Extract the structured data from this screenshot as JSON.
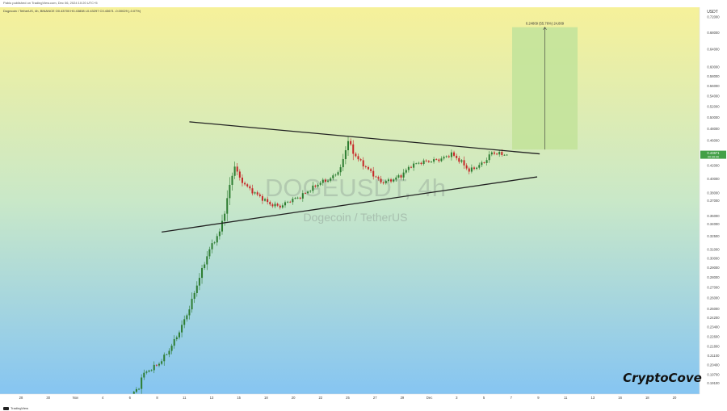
{
  "header": {
    "publisher": "Pablo published on TradingView.com, Dec 06, 2024 10:20 UTC+5",
    "symbol_line": "Dogecoin / TetherUS, 4h, BINANCE  O0.43700  H0.43808  L0.43297  C0.43671  -0.00029 (-0.07%)"
  },
  "currency": "USDT",
  "watermark": {
    "ticker": "DOGEUSDT, 4h",
    "name": "Dogecoin / TetherUS"
  },
  "brand": "CryptoCove",
  "footer": {
    "tradingview": "TradingView"
  },
  "colors": {
    "bg_top": "#f6f19a",
    "bg_mid": "#c9e8c8",
    "bg_bottom": "#86c5f2",
    "up": "#2e7d32",
    "down": "#c62828",
    "target_box": "#c3e39b",
    "trendline": "#222222"
  },
  "chart_data": {
    "type": "candlestick",
    "symbol": "DOGEUSDT",
    "timeframe": "4h",
    "price_scale": "log",
    "ylim": [
      0.1835,
      0.745
    ],
    "y_ticks": [
      "0.72000",
      "0.68000",
      "0.64000",
      "0.60000",
      "0.58000",
      "0.56000",
      "0.54000",
      "0.52000",
      "0.50000",
      "0.48000",
      "0.46000",
      "0.42000",
      "0.40000",
      "0.38000",
      "0.37000",
      "0.35000",
      "0.34000",
      "0.32500",
      "0.31000",
      "0.30000",
      "0.29000",
      "0.28000",
      "0.27000",
      "0.26000",
      "0.25000",
      "0.24200",
      "0.23400",
      "0.22600",
      "0.21800",
      "0.21100",
      "0.20400",
      "0.19700",
      "0.19100",
      "0.18450"
    ],
    "current_price": "0.43671",
    "current_price_sub": "00:39:40",
    "x_ticks": [
      "28",
      "30",
      "Nov",
      "4",
      "6",
      "8",
      "11",
      "13",
      "15",
      "18",
      "20",
      "22",
      "25",
      "27",
      "29",
      "Dec",
      "3",
      "5",
      "7",
      "9",
      "11",
      "13",
      "16",
      "18",
      "20"
    ],
    "price_path": [
      [
        0,
        0.185
      ],
      [
        2,
        0.187
      ],
      [
        3,
        0.196
      ],
      [
        6,
        0.2
      ],
      [
        10,
        0.205
      ],
      [
        14,
        0.215
      ],
      [
        18,
        0.23
      ],
      [
        22,
        0.25
      ],
      [
        26,
        0.28
      ],
      [
        30,
        0.31
      ],
      [
        34,
        0.33
      ],
      [
        36,
        0.355
      ],
      [
        38,
        0.39
      ],
      [
        40,
        0.42
      ],
      [
        42,
        0.4
      ],
      [
        46,
        0.385
      ],
      [
        50,
        0.375
      ],
      [
        54,
        0.365
      ],
      [
        58,
        0.362
      ],
      [
        62,
        0.37
      ],
      [
        66,
        0.375
      ],
      [
        70,
        0.385
      ],
      [
        74,
        0.395
      ],
      [
        78,
        0.4
      ],
      [
        82,
        0.415
      ],
      [
        85,
        0.46
      ],
      [
        87,
        0.44
      ],
      [
        90,
        0.425
      ],
      [
        94,
        0.41
      ],
      [
        98,
        0.395
      ],
      [
        102,
        0.398
      ],
      [
        106,
        0.405
      ],
      [
        110,
        0.42
      ],
      [
        114,
        0.425
      ],
      [
        118,
        0.427
      ],
      [
        122,
        0.43
      ],
      [
        126,
        0.438
      ],
      [
        130,
        0.425
      ],
      [
        133,
        0.412
      ],
      [
        136,
        0.418
      ],
      [
        139,
        0.425
      ],
      [
        142,
        0.44
      ],
      [
        145,
        0.438
      ],
      [
        148,
        0.4367
      ]
    ],
    "trendlines": [
      {
        "name": "upper",
        "from": [
          22,
          0.492
        ],
        "to": [
          161,
          0.438
        ]
      },
      {
        "name": "lower",
        "from": [
          11,
          0.33
        ],
        "to": [
          160,
          0.403
        ]
      }
    ],
    "projection": {
      "label": "0.24809 (55.76%) 24,809",
      "from_price": 0.445,
      "to_price": 0.693
    }
  }
}
